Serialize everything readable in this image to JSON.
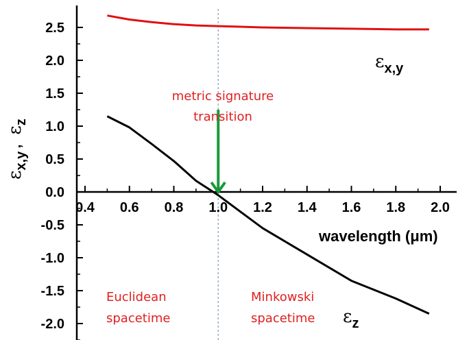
{
  "chart_data": {
    "type": "line",
    "xlabel": "wavelength (μm)",
    "ylabel": "εx,y , εz",
    "xlim": [
      0.3,
      2.2
    ],
    "ylim": [
      -2.2,
      2.7
    ],
    "xticks": [
      "0.4",
      "0.6",
      "0.8",
      "1.0",
      "1.2",
      "1.4",
      "1.6",
      "1.8",
      "2.0"
    ],
    "yticks": [
      "2.5",
      "2.0",
      "1.5",
      "1.0",
      "0.5",
      "0.0",
      "-0.5",
      "-1.0",
      "-1.5",
      "-2.0"
    ],
    "x_ticks_values": [
      0.4,
      0.6,
      0.8,
      1.0,
      1.2,
      1.4,
      1.6,
      1.8,
      2.0
    ],
    "y_ticks_values": [
      2.5,
      2.0,
      1.5,
      1.0,
      0.5,
      0.0,
      -0.5,
      -1.0,
      -1.5,
      -2.0
    ],
    "series": [
      {
        "name": "εx,y",
        "color": "#e01010",
        "x": [
          0.5,
          0.6,
          0.7,
          0.8,
          0.9,
          1.0,
          1.1,
          1.2,
          1.4,
          1.6,
          1.8,
          1.95
        ],
        "y": [
          2.68,
          2.62,
          2.58,
          2.55,
          2.53,
          2.52,
          2.51,
          2.5,
          2.49,
          2.48,
          2.47,
          2.47
        ]
      },
      {
        "name": "εz",
        "color": "#000000",
        "x": [
          0.5,
          0.6,
          0.7,
          0.8,
          0.9,
          1.0,
          1.1,
          1.2,
          1.4,
          1.6,
          1.8,
          1.95
        ],
        "y": [
          1.15,
          0.98,
          0.73,
          0.47,
          0.17,
          -0.05,
          -0.3,
          -0.55,
          -0.95,
          -1.35,
          -1.62,
          -1.85
        ]
      }
    ],
    "marker_line_x": 1.0,
    "marker_line_color": "#8aa0c8",
    "arrow": {
      "x": 1.0,
      "y_from": 1.25,
      "y_to": 0.0,
      "color": "#1a9a3a"
    },
    "annotations": {
      "metric_line1": "metric signature",
      "metric_line2": "transition",
      "euclid_line1": "Euclidean",
      "euclid_line2": "spacetime",
      "minkowski_line1": "Minkowski",
      "minkowski_line2": "spacetime"
    },
    "series_labels": {
      "exy_symbol": "ε",
      "exy_sub": "x,y",
      "ez_symbol": "ε",
      "ez_sub": "z"
    },
    "ylabel_parts": {
      "symbol1": "ε",
      "sub1": "x,y",
      "sep": ",",
      "symbol2": "ε",
      "sub2": "z"
    }
  }
}
